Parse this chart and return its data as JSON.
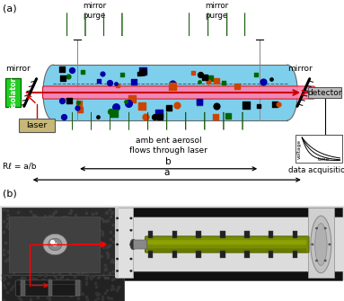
{
  "fig_label_a": "(a)",
  "fig_label_b": "(b)",
  "bg_color": "#ffffff",
  "cavity_color": "#7ecfec",
  "laser_beam_color": "#ff80b0",
  "laser_beam_edge": "#cc0000",
  "arrow_green": "#2d7a1f",
  "arrow_dark_green": "#1a5c0f",
  "isolator_color": "#22cc22",
  "laser_box_color": "#c8b878",
  "detector_color": "#bbbbbb",
  "red_arrow_color": "#cc0000",
  "text_color": "#000000",
  "particle_colors": [
    "#000000",
    "#cc4400",
    "#0000aa",
    "#006600"
  ],
  "label_mirror_l": "mirror",
  "label_mirror_r": "mirror",
  "label_purge_l": "mirror\npurge",
  "label_purge_r": "mirror\npurge",
  "label_isolator": "isolator",
  "label_laser": "laser",
  "label_detector": "detector",
  "label_aerosol": "amb ent aerosol\nflows through laser",
  "label_formula": "Rℓ = a/b",
  "label_b": "b",
  "label_a": "a",
  "label_data": "data acquisition",
  "label_voltage": "voltage",
  "label_time": "time"
}
